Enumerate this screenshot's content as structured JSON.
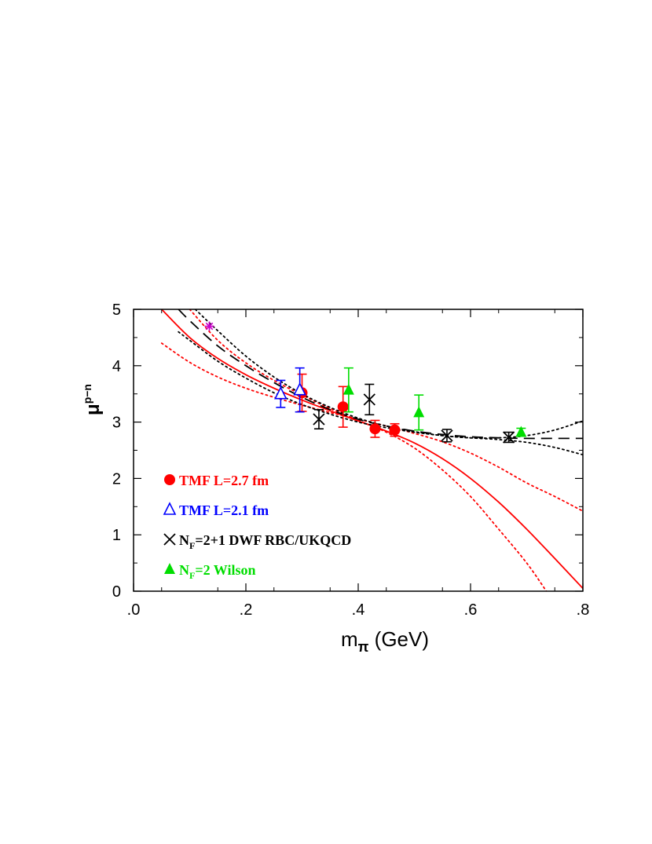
{
  "chart_data": {
    "type": "scatter",
    "xlabel": "m",
    "xlabel_sub": "π",
    "xlabel_unit": "(GeV)",
    "ylabel": "μ",
    "ylabel_sup": "p−n",
    "xlim": [
      0,
      0.8
    ],
    "ylim": [
      0,
      5
    ],
    "xticks": [
      0,
      0.2,
      0.4,
      0.6,
      0.8
    ],
    "xtick_labels": [
      ".0",
      ".2",
      ".4",
      ".6",
      ".8"
    ],
    "yticks": [
      0,
      1,
      2,
      3,
      4,
      5
    ],
    "ytick_labels": [
      "0",
      "1",
      "2",
      "3",
      "4",
      "5"
    ],
    "grid": false,
    "legend_position": "bottom-left",
    "physical_point": {
      "x": 0.135,
      "y": 4.7,
      "color": "#cc00cc",
      "marker": "asterisk"
    },
    "series": [
      {
        "name": "TMF L=2.7 fm",
        "color": "#ff0000",
        "marker": "filled-circle",
        "points": [
          {
            "x": 0.3,
            "y": 3.52,
            "err": 0.33
          },
          {
            "x": 0.373,
            "y": 3.27,
            "err": 0.36
          },
          {
            "x": 0.43,
            "y": 2.88,
            "err": 0.15
          },
          {
            "x": 0.465,
            "y": 2.86,
            "err": 0.11
          }
        ]
      },
      {
        "name": "TMF L=2.1 fm",
        "color": "#0000ff",
        "marker": "open-triangle",
        "points": [
          {
            "x": 0.262,
            "y": 3.5,
            "err": 0.24
          },
          {
            "x": 0.296,
            "y": 3.57,
            "err": 0.39
          }
        ]
      },
      {
        "name": "N_F=2+1 DWF RBC/UKQCD",
        "name_parts": [
          "N",
          "F",
          "=2+1 DWF RBC/UKQCD"
        ],
        "color": "#000000",
        "marker": "cross",
        "points": [
          {
            "x": 0.33,
            "y": 3.05,
            "err": 0.17
          },
          {
            "x": 0.42,
            "y": 3.4,
            "err": 0.27
          },
          {
            "x": 0.558,
            "y": 2.76,
            "err": 0.11
          },
          {
            "x": 0.668,
            "y": 2.73,
            "err": 0.09
          }
        ]
      },
      {
        "name": "N_F=2 Wilson",
        "name_parts": [
          "N",
          "F",
          "=2 Wilson"
        ],
        "color": "#00dd00",
        "marker": "filled-triangle",
        "points": [
          {
            "x": 0.383,
            "y": 3.57,
            "err": 0.39
          },
          {
            "x": 0.508,
            "y": 3.17,
            "err": 0.31
          },
          {
            "x": 0.69,
            "y": 2.82,
            "err": 0.07
          }
        ]
      }
    ],
    "curves": [
      {
        "style": "solid",
        "color": "#ff0000",
        "x": [
          0.05,
          0.1,
          0.15,
          0.2,
          0.25,
          0.3,
          0.35,
          0.4,
          0.45,
          0.5,
          0.55,
          0.6,
          0.65,
          0.7,
          0.75,
          0.8
        ],
        "y": [
          5.0,
          4.5,
          4.13,
          3.84,
          3.6,
          3.39,
          3.2,
          3.02,
          2.84,
          2.63,
          2.35,
          2.0,
          1.58,
          1.1,
          0.58,
          0.05
        ]
      },
      {
        "style": "dotted",
        "color": "#ff0000",
        "x": [
          0.05,
          0.1,
          0.15,
          0.2,
          0.25,
          0.3,
          0.35,
          0.4,
          0.45,
          0.5,
          0.55,
          0.6,
          0.65,
          0.7,
          0.75,
          0.8
        ],
        "y": [
          4.4,
          4.06,
          3.8,
          3.6,
          3.44,
          3.3,
          3.17,
          3.05,
          2.93,
          2.8,
          2.65,
          2.45,
          2.2,
          1.92,
          1.68,
          1.42
        ]
      },
      {
        "style": "dotted",
        "color": "#ff0000",
        "x": [
          0.1,
          0.15,
          0.2,
          0.25,
          0.3,
          0.35,
          0.4,
          0.45,
          0.5,
          0.55,
          0.6,
          0.65,
          0.7,
          0.735
        ],
        "y": [
          5.0,
          4.45,
          4.05,
          3.74,
          3.48,
          3.24,
          3.03,
          2.82,
          2.54,
          2.15,
          1.68,
          1.1,
          0.5,
          0.0
        ]
      },
      {
        "style": "dashed",
        "color": "#000000",
        "x": [
          0.08,
          0.1,
          0.15,
          0.2,
          0.25,
          0.3,
          0.35,
          0.4,
          0.45,
          0.5,
          0.55,
          0.6,
          0.65,
          0.7,
          0.75,
          0.8
        ],
        "y": [
          5.0,
          4.8,
          4.35,
          4.0,
          3.7,
          3.44,
          3.22,
          3.05,
          2.93,
          2.84,
          2.78,
          2.74,
          2.72,
          2.71,
          2.71,
          2.71
        ]
      },
      {
        "style": "dotted",
        "color": "#000000",
        "x": [
          0.11,
          0.15,
          0.2,
          0.25,
          0.3,
          0.35,
          0.4,
          0.45,
          0.5,
          0.55,
          0.6,
          0.65,
          0.7,
          0.75,
          0.8
        ],
        "y": [
          5.0,
          4.62,
          4.17,
          3.8,
          3.5,
          3.26,
          3.07,
          2.93,
          2.83,
          2.76,
          2.72,
          2.72,
          2.76,
          2.86,
          3.02
        ]
      },
      {
        "style": "dotted",
        "color": "#000000",
        "x": [
          0.08,
          0.1,
          0.15,
          0.2,
          0.25,
          0.3,
          0.35,
          0.4,
          0.45,
          0.5,
          0.55,
          0.6,
          0.65,
          0.7,
          0.75,
          0.8
        ],
        "y": [
          4.6,
          4.45,
          4.08,
          3.78,
          3.52,
          3.31,
          3.14,
          3.0,
          2.9,
          2.82,
          2.76,
          2.72,
          2.69,
          2.64,
          2.55,
          2.42
        ]
      }
    ]
  }
}
